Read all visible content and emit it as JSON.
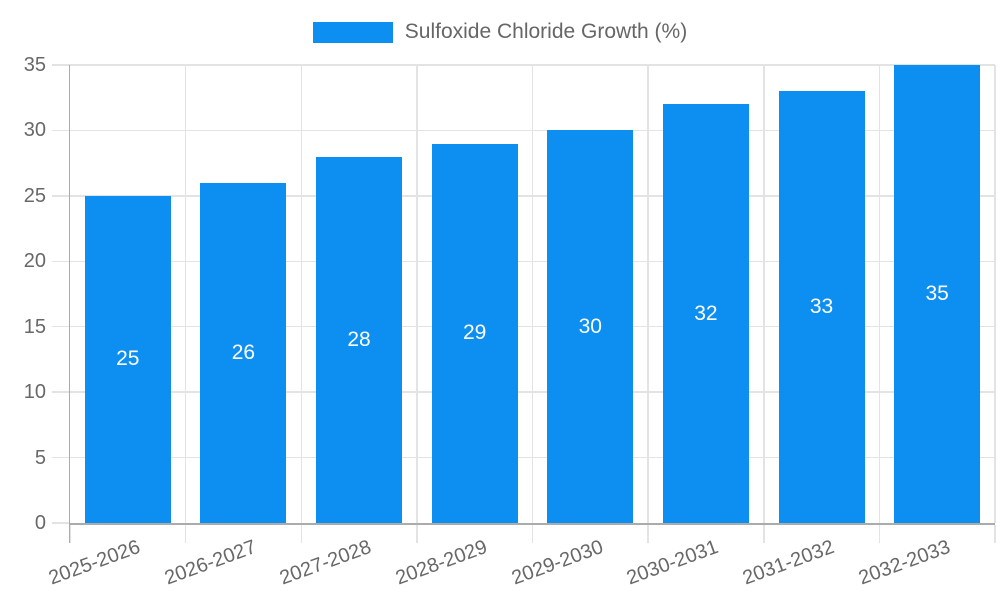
{
  "colors": {
    "bar": "#0d8ff2",
    "grid": "#e3e3e3",
    "axis": "#ababab",
    "tick_text": "#686868",
    "legend_text": "#666666",
    "bar_label": "#ffffff",
    "background": "#ffffff"
  },
  "chart_data": {
    "type": "bar",
    "title": "",
    "legend_label": "Sulfoxide Chloride Growth (%)",
    "legend_position": "top-center",
    "categories": [
      "2025-2026",
      "2026-2027",
      "2027-2028",
      "2028-2029",
      "2029-2030",
      "2030-2031",
      "2031-2032",
      "2032-2033"
    ],
    "values": [
      25,
      26,
      28,
      29,
      30,
      32,
      33,
      35
    ],
    "xlabel": "",
    "ylabel": "",
    "ylim": [
      0,
      35
    ],
    "yticks": [
      0,
      5,
      10,
      15,
      20,
      25,
      30,
      35
    ],
    "grid": true,
    "bar_value_labels_shown": true,
    "x_label_rotation_deg": -20
  }
}
